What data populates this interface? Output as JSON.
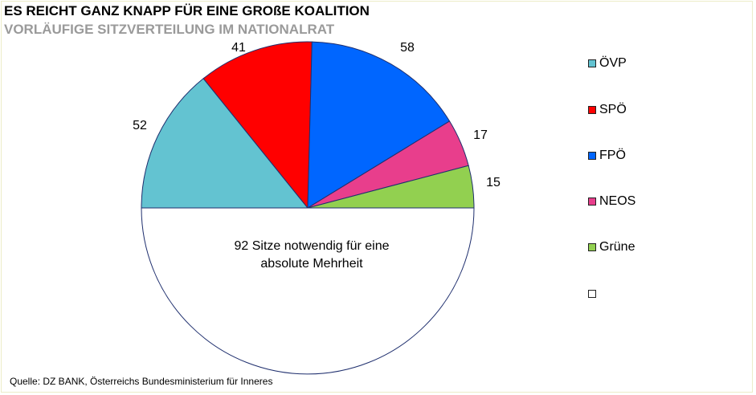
{
  "chart_data": {
    "type": "pie",
    "title": "ES REICHT GANZ KNAPP FÜR EINE GROßE KOALITION",
    "subtitle": "VORLÄUFIGE SITZVERTEILUNG IM NATIONALRAT",
    "source": "Quelle: DZ BANK, Österreichs Bundesministerium für Inneres",
    "total": 366,
    "slices": [
      {
        "name": "ÖVP",
        "value": 52,
        "label": "52",
        "color": "#63c3d1"
      },
      {
        "name": "SPÖ",
        "value": 41,
        "label": "41",
        "color": "#ff0000"
      },
      {
        "name": "FPÖ",
        "value": 58,
        "label": "58",
        "color": "#0066ff"
      },
      {
        "name": "NEOS",
        "value": 17,
        "label": "17",
        "color": "#e83e8c"
      },
      {
        "name": "Grüne",
        "value": 15,
        "label": "15",
        "color": "#92d050"
      },
      {
        "name": "",
        "value": 183,
        "label": "92 Sitze notwendig für eine absolute Mehrheit",
        "color": "#ffffff"
      }
    ],
    "legend_position": "right"
  }
}
